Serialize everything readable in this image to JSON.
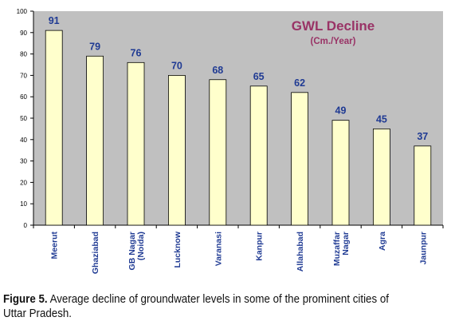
{
  "chart_data": {
    "type": "bar",
    "categories": [
      "Meerut",
      "Ghaziabad",
      "GB Nagar\n(Noida)",
      "Lucknow",
      "Varanasi",
      "Kanpur",
      "Allahabad",
      "Muzaffar\nNagar",
      "Agra",
      "Jaunpur"
    ],
    "values": [
      91,
      79,
      76,
      70,
      68,
      65,
      62,
      49,
      45,
      37
    ],
    "ylim": [
      0,
      100
    ],
    "yticks": [
      0,
      10,
      20,
      30,
      40,
      50,
      60,
      70,
      80,
      90,
      100
    ],
    "title": "GWL Decline",
    "subtitle": "(Cm./Year)",
    "xlabel": "",
    "ylabel": "",
    "grid": false,
    "legend": "none",
    "colors": {
      "plot_bg": "#c0c0c0",
      "bar_fill": "#ffffcc",
      "bar_stroke": "#000000",
      "value_label": "#1f3a93",
      "title": "#993366"
    }
  },
  "caption": {
    "label": "Figure 5.",
    "text": " Average decline of groundwater levels in some of the prominent cities of Uttar Pradesh."
  }
}
